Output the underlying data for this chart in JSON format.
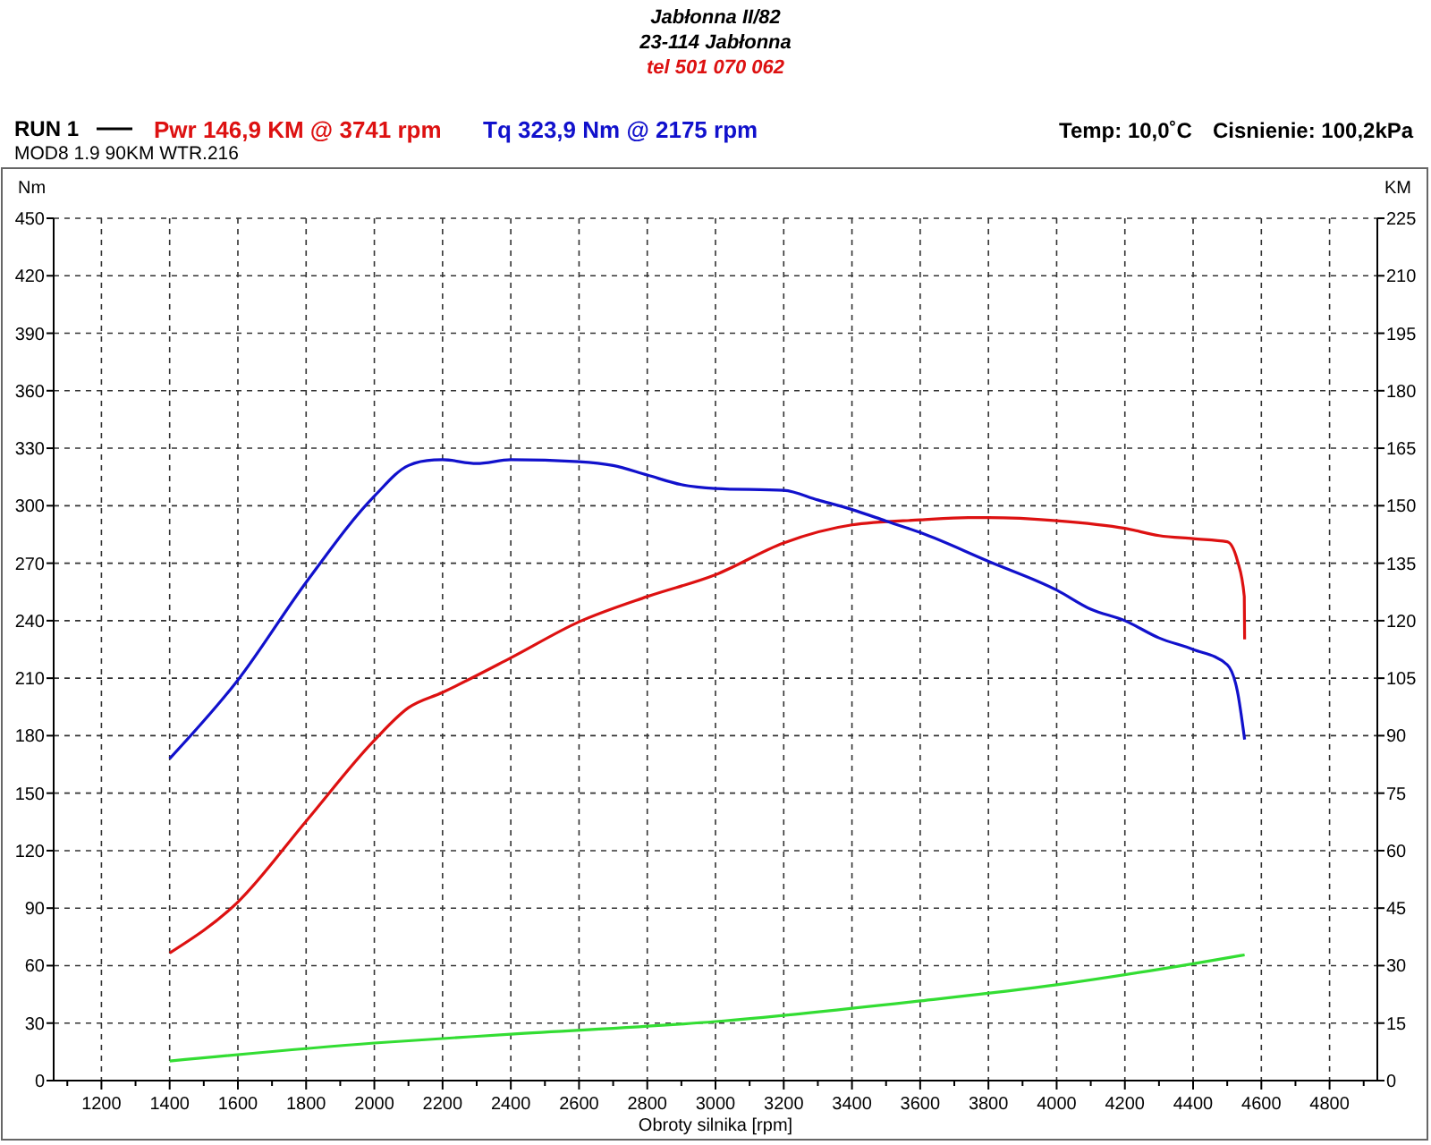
{
  "chart_data": {
    "type": "line",
    "annotations": [
      "Jabłonna II/82",
      "23-114 Jabłonna",
      "tel 501 070 062",
      "RUN 1",
      "MOD8 1.9 90KM WTR.216",
      "Temp: 10,0˚C",
      "Cisnienie: 100,2kPa"
    ],
    "xlabel": "Obroty silnika [rpm]",
    "ylabel": "Nm",
    "y2label": "KM",
    "xlim": [
      1060,
      4940
    ],
    "xticks": [
      {
        "value": 1100,
        "label": null
      },
      1200,
      {
        "value": 1300,
        "label": null
      },
      1400,
      {
        "value": 1500,
        "label": null
      },
      1600,
      {
        "value": 1700,
        "label": null
      },
      1800,
      {
        "value": 1900,
        "label": null
      },
      2000,
      {
        "value": 2100,
        "label": null
      },
      2200,
      {
        "value": 2300,
        "label": null
      },
      2400,
      {
        "value": 2500,
        "label": null
      },
      2600,
      {
        "value": 2700,
        "label": null
      },
      2800,
      {
        "value": 2900,
        "label": null
      },
      3000,
      {
        "value": 3100,
        "label": null
      },
      3200,
      {
        "value": 3300,
        "label": null
      },
      3400,
      {
        "value": 3500,
        "label": null
      },
      3600,
      {
        "value": 3700,
        "label": null
      },
      3800,
      {
        "value": 3900,
        "label": null
      },
      4000,
      {
        "value": 4100,
        "label": null
      },
      4200,
      {
        "value": 4300,
        "label": null
      },
      4400,
      {
        "value": 4500,
        "label": null
      },
      4600,
      {
        "value": 4700,
        "label": null
      },
      4800,
      {
        "value": 4900,
        "label": null
      }
    ],
    "ylim": [
      0,
      450
    ],
    "yticks": [
      0,
      30,
      60,
      90,
      120,
      150,
      180,
      210,
      240,
      270,
      300,
      330,
      360,
      390,
      420,
      450
    ],
    "y2lim": [
      0,
      225
    ],
    "y2ticks": [
      0,
      15,
      30,
      45,
      60,
      75,
      90,
      105,
      120,
      135,
      150,
      165,
      180,
      195,
      210,
      225
    ],
    "grid": true,
    "legend": "top left",
    "line_style": "solid",
    "series": [
      {
        "name": "Pwr  146,9 KM @ 3741 rpm",
        "color": "#dd1111",
        "axis": "y2",
        "x": [
          1400,
          1600,
          1800,
          2000,
          2100,
          2200,
          2400,
          2600,
          2800,
          3000,
          3200,
          3400,
          3600,
          3741,
          3800,
          4000,
          4200,
          4300,
          4400,
          4500,
          4530,
          4550,
          4551
        ],
        "values": [
          33.3,
          46.6,
          67.7,
          88.8,
          97.3,
          101.3,
          110.3,
          119.7,
          126.3,
          132,
          140.3,
          145,
          146.3,
          146.9,
          146.9,
          146.1,
          144.1,
          142.2,
          141.4,
          140.6,
          135.6,
          126.3,
          115.1
        ]
      },
      {
        "name": "Tq 323,9 Nm @ 2175 rpm",
        "color": "#1111cc",
        "x": [
          1400,
          1600,
          1800,
          2000,
          2100,
          2175,
          2200,
          2300,
          2400,
          2600,
          2700,
          2800,
          2900,
          3000,
          3200,
          3300,
          3400,
          3500,
          3600,
          3800,
          4000,
          4100,
          4200,
          4300,
          4400,
          4500,
          4530,
          4551
        ],
        "values": [
          168,
          209,
          260,
          305,
          321,
          323.9,
          324,
          322,
          324,
          323,
          321,
          316,
          311,
          309,
          308,
          303,
          298,
          292,
          286,
          271,
          256,
          246,
          240,
          231,
          225,
          217,
          203,
          178
        ]
      },
      {
        "color": "#33dd33",
        "axis": "y2",
        "x": [
          1400,
          2000,
          2400,
          3000,
          3600,
          4000,
          4400,
          4551
        ],
        "values": [
          5.1,
          9.8,
          12.1,
          15.4,
          20.8,
          25,
          30.5,
          32.8
        ]
      }
    ]
  }
}
